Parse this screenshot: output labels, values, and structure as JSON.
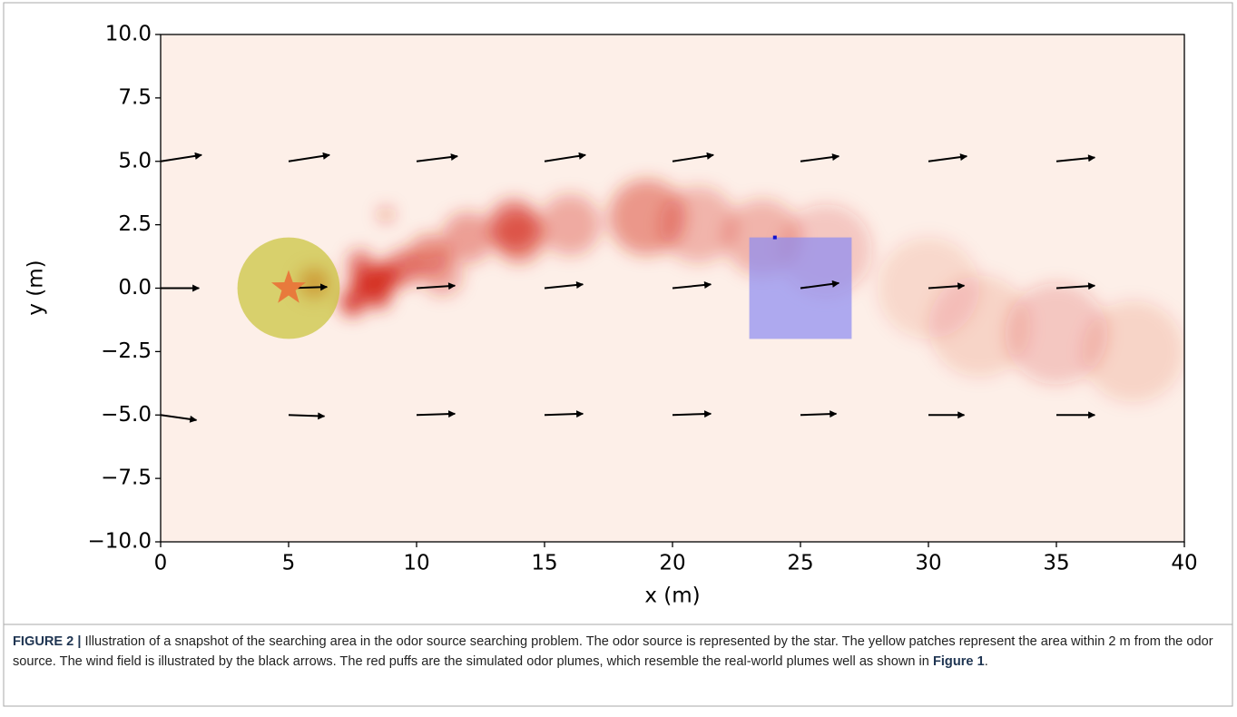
{
  "chart_data": {
    "type": "odor-field",
    "xlabel": "x (m)",
    "ylabel": "y (m)",
    "xlim": [
      0,
      40
    ],
    "ylim": [
      -10,
      10
    ],
    "xticks": [
      0,
      5,
      10,
      15,
      20,
      25,
      30,
      35,
      40
    ],
    "yticks": [
      {
        "value": 10,
        "label": "10.0"
      },
      {
        "value": 7.5,
        "label": "7.5"
      },
      {
        "value": 5,
        "label": "5.0"
      },
      {
        "value": 2.5,
        "label": "2.5"
      },
      {
        "value": 0,
        "label": "0.0"
      },
      {
        "value": -2.5,
        "label": "−2.5"
      },
      {
        "value": -5,
        "label": "−5.0"
      },
      {
        "value": -7.5,
        "label": "−7.5"
      },
      {
        "value": -10,
        "label": "−10.0"
      }
    ],
    "background_color": "#fdefe8",
    "source": {
      "x": 5,
      "y": 0,
      "radius": 2,
      "color": "#e87a3c",
      "patch_color": "#c9c43c"
    },
    "target_box": {
      "x": [
        23,
        27
      ],
      "y": [
        -2,
        2
      ],
      "color": "#8c8cf2"
    },
    "probe": {
      "x": 24,
      "y": 2,
      "color": "#1010d0"
    },
    "plume": {
      "color": "#d42a1c",
      "x": [
        6,
        7.5,
        8,
        8.7,
        8.5,
        7.8,
        9.5,
        10.5,
        11,
        12,
        13.8,
        14,
        16,
        19,
        21,
        23.5,
        26,
        30,
        32,
        35,
        38,
        8.8
      ],
      "y": [
        0.2,
        -0.6,
        0.2,
        0.4,
        -0.3,
        1,
        0.8,
        1.3,
        0.5,
        2,
        2.5,
        2,
        2.5,
        2.8,
        2.5,
        2,
        1.5,
        0,
        -1.5,
        -1.8,
        -2.5,
        2.9
      ],
      "r": [
        0.6,
        0.5,
        0.6,
        0.6,
        0.5,
        0.5,
        0.7,
        0.8,
        0.8,
        1,
        1,
        1,
        1.2,
        1.5,
        1.5,
        1.5,
        1.8,
        2,
        2,
        2,
        2,
        0.3
      ],
      "intensity": [
        0.9,
        0.85,
        0.9,
        0.95,
        0.85,
        0.6,
        0.6,
        0.5,
        0.35,
        0.4,
        0.55,
        0.5,
        0.35,
        0.45,
        0.3,
        0.3,
        0.2,
        0.12,
        0.14,
        0.2,
        0.14,
        0.4
      ]
    },
    "wind": {
      "color": "#000000",
      "x": [
        0,
        5,
        10,
        15,
        20,
        25,
        30,
        35,
        0,
        5,
        10,
        15,
        20,
        25,
        30,
        35,
        0,
        5,
        10,
        15,
        20,
        25,
        30,
        35
      ],
      "y": [
        5,
        5,
        5,
        5,
        5,
        5,
        5,
        5,
        0,
        0,
        0,
        0,
        0,
        0,
        0,
        0,
        -5,
        -5,
        -5,
        -5,
        -5,
        -5,
        -5,
        -5
      ],
      "u": [
        1.6,
        1.6,
        1.6,
        1.6,
        1.6,
        1.5,
        1.5,
        1.5,
        1.5,
        1.5,
        1.5,
        1.5,
        1.5,
        1.5,
        1.4,
        1.5,
        1.4,
        1.4,
        1.5,
        1.5,
        1.5,
        1.4,
        1.4,
        1.5
      ],
      "v": [
        0.25,
        0.25,
        0.2,
        0.25,
        0.25,
        0.2,
        0.2,
        0.15,
        0,
        0.05,
        0.1,
        0.15,
        0.15,
        0.2,
        0.1,
        0.1,
        -0.2,
        -0.05,
        0.05,
        0.05,
        0.05,
        0.05,
        0,
        0
      ]
    }
  },
  "caption": {
    "label": "FIGURE 2 |",
    "text": " Illustration of a snapshot of the searching area in the odor source searching problem. The odor source is represented by the star. The yellow patches represent the area within 2 m from the odor source. The wind field is illustrated by the black arrows. The red puffs are the simulated odor plumes, which resemble the real-world plumes well as shown in ",
    "ref": "Figure 1",
    "tail": "."
  }
}
